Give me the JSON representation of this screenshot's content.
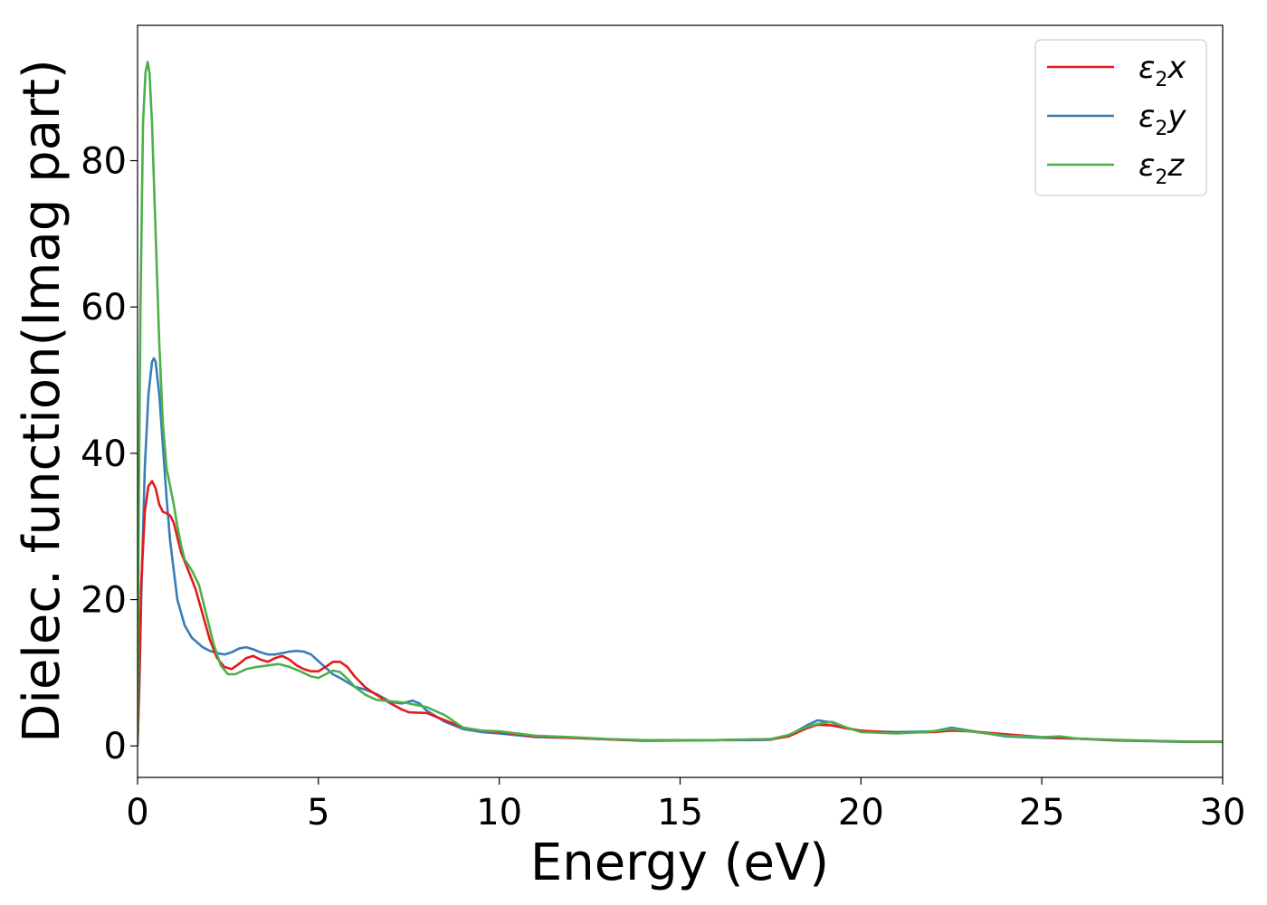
{
  "chart_data": {
    "type": "line",
    "title": "",
    "xlabel": "Energy (eV)",
    "ylabel": "Dielec. function(Imag part)",
    "xlim": [
      0,
      30
    ],
    "ylim": [
      -4.3,
      98.5
    ],
    "xticks": [
      0,
      5,
      10,
      15,
      20,
      25,
      30
    ],
    "xtick_labels": [
      "0",
      "5",
      "10",
      "15",
      "20",
      "25",
      "30"
    ],
    "yticks": [
      0,
      20,
      40,
      60,
      80
    ],
    "ytick_labels": [
      "0",
      "20",
      "40",
      "60",
      "80"
    ],
    "grid": false,
    "legend_position": "top-right",
    "series": [
      {
        "name": "ε2x",
        "legend": {
          "base": "ε",
          "sub": "2",
          "suffix": "x"
        },
        "color": "#e41a1c",
        "points": [
          [
            0,
            0
          ],
          [
            0.05,
            10
          ],
          [
            0.1,
            22
          ],
          [
            0.2,
            32
          ],
          [
            0.3,
            35.5
          ],
          [
            0.4,
            36.2
          ],
          [
            0.5,
            35.2
          ],
          [
            0.6,
            33
          ],
          [
            0.7,
            32
          ],
          [
            0.8,
            31.8
          ],
          [
            0.9,
            31.5
          ],
          [
            1.0,
            30.5
          ],
          [
            1.1,
            28.5
          ],
          [
            1.2,
            26.5
          ],
          [
            1.4,
            24
          ],
          [
            1.6,
            21.5
          ],
          [
            1.8,
            18
          ],
          [
            2.0,
            14.5
          ],
          [
            2.2,
            12
          ],
          [
            2.4,
            10.8
          ],
          [
            2.6,
            10.5
          ],
          [
            2.8,
            11.2
          ],
          [
            3.0,
            12
          ],
          [
            3.2,
            12.3
          ],
          [
            3.4,
            11.8
          ],
          [
            3.6,
            11.5
          ],
          [
            3.8,
            12
          ],
          [
            4.0,
            12.3
          ],
          [
            4.2,
            11.8
          ],
          [
            4.4,
            11
          ],
          [
            4.6,
            10.5
          ],
          [
            4.8,
            10.2
          ],
          [
            5.0,
            10.2
          ],
          [
            5.2,
            10.8
          ],
          [
            5.4,
            11.5
          ],
          [
            5.6,
            11.5
          ],
          [
            5.8,
            10.8
          ],
          [
            6.0,
            9.5
          ],
          [
            6.3,
            8
          ],
          [
            6.6,
            7
          ],
          [
            7.0,
            5.8
          ],
          [
            7.3,
            5
          ],
          [
            7.5,
            4.6
          ],
          [
            8.0,
            4.5
          ],
          [
            8.5,
            3.5
          ],
          [
            9.0,
            2.5
          ],
          [
            9.5,
            2.1
          ],
          [
            10,
            1.9
          ],
          [
            11,
            1.3
          ],
          [
            12,
            1.1
          ],
          [
            13,
            0.9
          ],
          [
            14,
            0.75
          ],
          [
            15,
            0.75
          ],
          [
            16,
            0.8
          ],
          [
            17,
            0.9
          ],
          [
            17.5,
            0.9
          ],
          [
            18,
            1.3
          ],
          [
            18.5,
            2.4
          ],
          [
            18.8,
            2.9
          ],
          [
            19.2,
            2.8
          ],
          [
            19.6,
            2.4
          ],
          [
            20,
            2.1
          ],
          [
            21,
            1.8
          ],
          [
            22,
            1.9
          ],
          [
            22.5,
            2.1
          ],
          [
            23,
            2.0
          ],
          [
            24,
            1.6
          ],
          [
            25,
            1.2
          ],
          [
            26,
            1.0
          ],
          [
            27,
            0.8
          ],
          [
            28,
            0.7
          ],
          [
            29,
            0.6
          ],
          [
            30,
            0.6
          ]
        ]
      },
      {
        "name": "ε2y",
        "legend": {
          "base": "ε",
          "sub": "2",
          "suffix": "y"
        },
        "color": "#377eb8",
        "points": [
          [
            0,
            0
          ],
          [
            0.05,
            8
          ],
          [
            0.1,
            20
          ],
          [
            0.2,
            38
          ],
          [
            0.3,
            48
          ],
          [
            0.4,
            52.5
          ],
          [
            0.45,
            53
          ],
          [
            0.5,
            52.5
          ],
          [
            0.6,
            48
          ],
          [
            0.7,
            41
          ],
          [
            0.8,
            34
          ],
          [
            0.9,
            28
          ],
          [
            1.0,
            24
          ],
          [
            1.1,
            20
          ],
          [
            1.3,
            16.5
          ],
          [
            1.5,
            14.8
          ],
          [
            1.8,
            13.5
          ],
          [
            2.0,
            13
          ],
          [
            2.2,
            12.7
          ],
          [
            2.4,
            12.5
          ],
          [
            2.6,
            12.8
          ],
          [
            2.8,
            13.3
          ],
          [
            3.0,
            13.5
          ],
          [
            3.2,
            13.2
          ],
          [
            3.4,
            12.8
          ],
          [
            3.6,
            12.5
          ],
          [
            3.8,
            12.5
          ],
          [
            4.0,
            12.7
          ],
          [
            4.2,
            12.9
          ],
          [
            4.4,
            13
          ],
          [
            4.6,
            12.9
          ],
          [
            4.8,
            12.5
          ],
          [
            5.0,
            11.6
          ],
          [
            5.2,
            10.7
          ],
          [
            5.4,
            9.8
          ],
          [
            5.6,
            9.3
          ],
          [
            5.8,
            8.7
          ],
          [
            6.0,
            8.1
          ],
          [
            6.3,
            7.7
          ],
          [
            6.6,
            7.1
          ],
          [
            7.0,
            6
          ],
          [
            7.3,
            5.8
          ],
          [
            7.6,
            6.2
          ],
          [
            7.8,
            5.8
          ],
          [
            8.0,
            4.8
          ],
          [
            8.5,
            3.3
          ],
          [
            9.0,
            2.3
          ],
          [
            9.5,
            1.9
          ],
          [
            10,
            1.7
          ],
          [
            11,
            1.2
          ],
          [
            12,
            1.1
          ],
          [
            13,
            0.9
          ],
          [
            14,
            0.7
          ],
          [
            15,
            0.75
          ],
          [
            16,
            0.8
          ],
          [
            17,
            0.8
          ],
          [
            17.5,
            0.85
          ],
          [
            18,
            1.4
          ],
          [
            18.5,
            2.8
          ],
          [
            18.8,
            3.5
          ],
          [
            19.2,
            3.2
          ],
          [
            19.6,
            2.5
          ],
          [
            20,
            2.0
          ],
          [
            21,
            1.9
          ],
          [
            22,
            2.0
          ],
          [
            22.5,
            2.5
          ],
          [
            23,
            2.1
          ],
          [
            24,
            1.3
          ],
          [
            25,
            1.1
          ],
          [
            26,
            1.0
          ],
          [
            27,
            0.75
          ],
          [
            28,
            0.65
          ],
          [
            29,
            0.55
          ],
          [
            30,
            0.55
          ]
        ]
      },
      {
        "name": "ε2z",
        "legend": {
          "base": "ε",
          "sub": "2",
          "suffix": "z"
        },
        "color": "#4daf4a",
        "points": [
          [
            0,
            0
          ],
          [
            0.03,
            30
          ],
          [
            0.08,
            60
          ],
          [
            0.15,
            85
          ],
          [
            0.22,
            92
          ],
          [
            0.28,
            93.5
          ],
          [
            0.33,
            92
          ],
          [
            0.4,
            85
          ],
          [
            0.5,
            70
          ],
          [
            0.6,
            55
          ],
          [
            0.7,
            44
          ],
          [
            0.8,
            38
          ],
          [
            0.9,
            35.5
          ],
          [
            1.0,
            33
          ],
          [
            1.1,
            30
          ],
          [
            1.2,
            27.5
          ],
          [
            1.3,
            25.5
          ],
          [
            1.5,
            24
          ],
          [
            1.7,
            22
          ],
          [
            1.9,
            18
          ],
          [
            2.1,
            14
          ],
          [
            2.3,
            11
          ],
          [
            2.5,
            9.8
          ],
          [
            2.7,
            9.8
          ],
          [
            3.0,
            10.5
          ],
          [
            3.3,
            10.8
          ],
          [
            3.6,
            11
          ],
          [
            3.9,
            11.2
          ],
          [
            4.2,
            10.8
          ],
          [
            4.5,
            10.2
          ],
          [
            4.8,
            9.5
          ],
          [
            5.0,
            9.3
          ],
          [
            5.2,
            9.8
          ],
          [
            5.4,
            10.3
          ],
          [
            5.6,
            10.1
          ],
          [
            5.8,
            9.2
          ],
          [
            6.0,
            8.1
          ],
          [
            6.3,
            7
          ],
          [
            6.6,
            6.3
          ],
          [
            7.0,
            6.1
          ],
          [
            7.4,
            5.9
          ],
          [
            8.0,
            5.3
          ],
          [
            8.5,
            4.2
          ],
          [
            9.0,
            2.5
          ],
          [
            9.5,
            2.1
          ],
          [
            10,
            2.0
          ],
          [
            11,
            1.4
          ],
          [
            12,
            1.2
          ],
          [
            13,
            0.95
          ],
          [
            14,
            0.8
          ],
          [
            15,
            0.8
          ],
          [
            16,
            0.8
          ],
          [
            17,
            0.9
          ],
          [
            17.5,
            0.95
          ],
          [
            18,
            1.5
          ],
          [
            18.5,
            2.6
          ],
          [
            18.8,
            3.0
          ],
          [
            19.2,
            3.3
          ],
          [
            19.6,
            2.5
          ],
          [
            20,
            1.9
          ],
          [
            21,
            1.7
          ],
          [
            22,
            2.0
          ],
          [
            22.5,
            2.3
          ],
          [
            23,
            2.0
          ],
          [
            24,
            1.4
          ],
          [
            25,
            1.2
          ],
          [
            25.5,
            1.3
          ],
          [
            26,
            1.0
          ],
          [
            27,
            0.85
          ],
          [
            28,
            0.7
          ],
          [
            29,
            0.6
          ],
          [
            30,
            0.6
          ]
        ]
      }
    ]
  }
}
